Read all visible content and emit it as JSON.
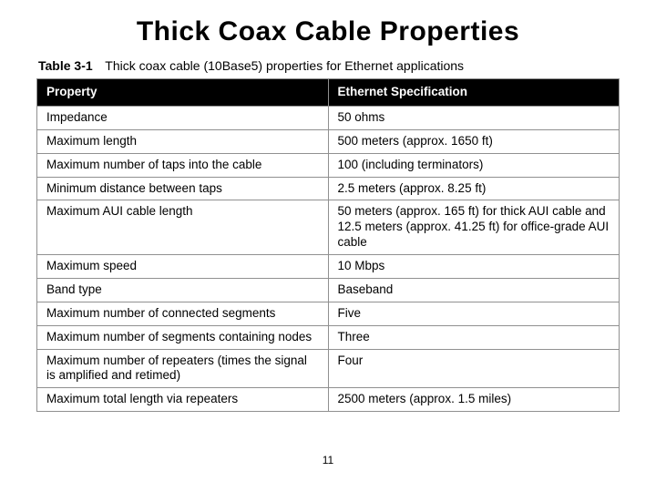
{
  "title": "Thick Coax Cable Properties",
  "caption_label": "Table 3-1",
  "caption_text": "Thick coax cable (10Base5) properties for Ethernet applications",
  "table": {
    "columns": [
      "Property",
      "Ethernet Specification"
    ],
    "rows": [
      [
        "Impedance",
        "50 ohms"
      ],
      [
        "Maximum length",
        "500 meters (approx. 1650 ft)"
      ],
      [
        "Maximum number of taps into the cable",
        "100 (including terminators)"
      ],
      [
        "Minimum distance between taps",
        "2.5 meters (approx. 8.25 ft)"
      ],
      [
        "Maximum AUI cable length",
        "50 meters (approx. 165 ft) for thick AUI cable and 12.5 meters (approx. 41.25 ft) for office-grade AUI cable"
      ],
      [
        "Maximum speed",
        "10 Mbps"
      ],
      [
        "Band type",
        "Baseband"
      ],
      [
        "Maximum number of connected segments",
        "Five"
      ],
      [
        "Maximum number of segments containing nodes",
        "Three"
      ],
      [
        "Maximum number of repeaters (times the signal is amplified and retimed)",
        "Four"
      ],
      [
        "Maximum total length via repeaters",
        "2500 meters (approx. 1.5 miles)"
      ]
    ],
    "header_bg": "#000000",
    "header_fg": "#ffffff",
    "border_color": "#909090",
    "cell_fontsize": 13.5,
    "header_fontsize": 13.5
  },
  "page_number": "11"
}
